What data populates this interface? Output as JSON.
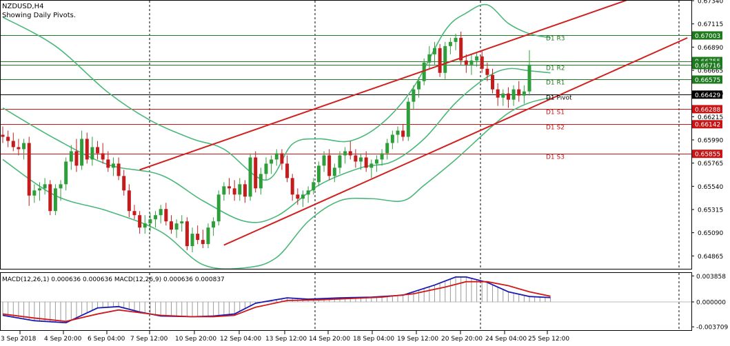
{
  "symbol_title": "NZDUSD,H4",
  "subtitle": "Showing Daily Pivots.",
  "macd_label": "MACD(12,26,1) 0.000636 0.000636 MACD(12,26,9) 0.000636 0.000837",
  "colors": {
    "bull": "#2e9e3a",
    "bear": "#c21c1c",
    "bollinger": "#4ab87a",
    "trend": "#d02020",
    "pivot_res": "#1f7a1f",
    "pivot_sup": "#c81414",
    "pivot_main": "#000000",
    "macd_fast": "#1a1ab0",
    "macd_signal": "#d01818",
    "hist": "#9a9a9a"
  },
  "chart_data": {
    "type": "candlestick",
    "symbol": "NZDUSD",
    "timeframe": "H4",
    "y_ticks": [
      "0.67340",
      "0.67115",
      "0.66890",
      "0.66665",
      "0.66440",
      "0.66215",
      "0.65990",
      "0.65765",
      "0.65540",
      "0.65315",
      "0.65090",
      "0.64865"
    ],
    "ylim": [
      0.6474,
      0.6734
    ],
    "x_tick_labels": [
      "3 Sep 2018",
      "4 Sep 20:00",
      "6 Sep 04:00",
      "7 Sep 12:00",
      "10 Sep 20:00",
      "12 Sep 04:00",
      "13 Sep 12:00",
      "14 Sep 20:00",
      "18 Sep 04:00",
      "19 Sep 12:00",
      "20 Sep 20:00",
      "24 Sep 04:00",
      "25 Sep 12:00"
    ],
    "candles": [
      [
        0.6604,
        0.6612,
        0.6596,
        0.6602
      ],
      [
        0.6602,
        0.6608,
        0.6592,
        0.6598
      ],
      [
        0.6598,
        0.6606,
        0.6588,
        0.6592
      ],
      [
        0.6592,
        0.66,
        0.6584,
        0.659
      ],
      [
        0.659,
        0.66,
        0.658,
        0.6596
      ],
      [
        0.6596,
        0.6602,
        0.6535,
        0.6545
      ],
      [
        0.6545,
        0.6556,
        0.6538,
        0.655
      ],
      [
        0.655,
        0.6558,
        0.654,
        0.6552
      ],
      [
        0.6552,
        0.6562,
        0.6546,
        0.6556
      ],
      [
        0.6556,
        0.656,
        0.6526,
        0.653
      ],
      [
        0.653,
        0.6556,
        0.6526,
        0.6552
      ],
      [
        0.6552,
        0.656,
        0.654,
        0.6556
      ],
      [
        0.6556,
        0.6582,
        0.655,
        0.6578
      ],
      [
        0.6578,
        0.6594,
        0.657,
        0.6588
      ],
      [
        0.6588,
        0.66,
        0.6568,
        0.6574
      ],
      [
        0.6574,
        0.6608,
        0.657,
        0.66
      ],
      [
        0.66,
        0.6606,
        0.6576,
        0.658
      ],
      [
        0.658,
        0.6602,
        0.6574,
        0.6592
      ],
      [
        0.6592,
        0.6598,
        0.658,
        0.6586
      ],
      [
        0.6586,
        0.6596,
        0.6576,
        0.658
      ],
      [
        0.658,
        0.6588,
        0.6568,
        0.6572
      ],
      [
        0.6572,
        0.6582,
        0.6564,
        0.6576
      ],
      [
        0.6576,
        0.6582,
        0.656,
        0.6564
      ],
      [
        0.6564,
        0.657,
        0.6545,
        0.655
      ],
      [
        0.655,
        0.6556,
        0.6524,
        0.653
      ],
      [
        0.653,
        0.6536,
        0.6522,
        0.6526
      ],
      [
        0.6526,
        0.653,
        0.6508,
        0.6514
      ],
      [
        0.6514,
        0.6526,
        0.6508,
        0.6518
      ],
      [
        0.6518,
        0.6528,
        0.651,
        0.6522
      ],
      [
        0.6522,
        0.653,
        0.6514,
        0.6526
      ],
      [
        0.6526,
        0.6536,
        0.6518,
        0.6532
      ],
      [
        0.6532,
        0.6538,
        0.6516,
        0.652
      ],
      [
        0.652,
        0.6526,
        0.6508,
        0.6512
      ],
      [
        0.6512,
        0.6522,
        0.6504,
        0.6518
      ],
      [
        0.6518,
        0.6526,
        0.651,
        0.652
      ],
      [
        0.652,
        0.6524,
        0.6492,
        0.6496
      ],
      [
        0.6496,
        0.6514,
        0.649,
        0.6508
      ],
      [
        0.6508,
        0.6516,
        0.6498,
        0.6502
      ],
      [
        0.6502,
        0.6512,
        0.6494,
        0.6498
      ],
      [
        0.6498,
        0.6518,
        0.6494,
        0.6514
      ],
      [
        0.6514,
        0.6524,
        0.6506,
        0.652
      ],
      [
        0.652,
        0.655,
        0.6516,
        0.6546
      ],
      [
        0.6546,
        0.6558,
        0.654,
        0.6554
      ],
      [
        0.6554,
        0.6562,
        0.6546,
        0.6552
      ],
      [
        0.6552,
        0.656,
        0.654,
        0.6546
      ],
      [
        0.6546,
        0.6562,
        0.654,
        0.6556
      ],
      [
        0.6556,
        0.656,
        0.6538,
        0.6544
      ],
      [
        0.6544,
        0.6586,
        0.654,
        0.6582
      ],
      [
        0.6582,
        0.6588,
        0.6548,
        0.6552
      ],
      [
        0.6552,
        0.6572,
        0.6546,
        0.6566
      ],
      [
        0.6566,
        0.6582,
        0.656,
        0.6576
      ],
      [
        0.6576,
        0.6584,
        0.6566,
        0.658
      ],
      [
        0.658,
        0.659,
        0.6574,
        0.6586
      ],
      [
        0.6586,
        0.659,
        0.657,
        0.6576
      ],
      [
        0.6576,
        0.6584,
        0.6558,
        0.6562
      ],
      [
        0.6562,
        0.6566,
        0.654,
        0.6546
      ],
      [
        0.6546,
        0.6552,
        0.6536,
        0.6542
      ],
      [
        0.6542,
        0.655,
        0.6534,
        0.6546
      ],
      [
        0.6546,
        0.6554,
        0.6538,
        0.655
      ],
      [
        0.655,
        0.6562,
        0.6546,
        0.6558
      ],
      [
        0.6558,
        0.6578,
        0.6554,
        0.6574
      ],
      [
        0.6574,
        0.6588,
        0.6568,
        0.6584
      ],
      [
        0.6584,
        0.659,
        0.656,
        0.6564
      ],
      [
        0.6564,
        0.6576,
        0.6558,
        0.6572
      ],
      [
        0.6572,
        0.6588,
        0.6566,
        0.6584
      ],
      [
        0.6584,
        0.6592,
        0.6576,
        0.6588
      ],
      [
        0.6588,
        0.6598,
        0.658,
        0.6584
      ],
      [
        0.6584,
        0.659,
        0.6572,
        0.6578
      ],
      [
        0.6578,
        0.6586,
        0.657,
        0.6582
      ],
      [
        0.6582,
        0.6588,
        0.6568,
        0.6572
      ],
      [
        0.6572,
        0.658,
        0.6562,
        0.6576
      ],
      [
        0.6576,
        0.6584,
        0.6568,
        0.658
      ],
      [
        0.658,
        0.659,
        0.6574,
        0.6586
      ],
      [
        0.6586,
        0.66,
        0.658,
        0.6596
      ],
      [
        0.6596,
        0.6608,
        0.659,
        0.6604
      ],
      [
        0.6604,
        0.6612,
        0.6596,
        0.6608
      ],
      [
        0.6608,
        0.6614,
        0.6598,
        0.6602
      ],
      [
        0.6602,
        0.664,
        0.6598,
        0.6636
      ],
      [
        0.6636,
        0.6652,
        0.6628,
        0.6648
      ],
      [
        0.6648,
        0.666,
        0.664,
        0.6656
      ],
      [
        0.6656,
        0.6678,
        0.6652,
        0.6674
      ],
      [
        0.6674,
        0.669,
        0.6668,
        0.6682
      ],
      [
        0.6682,
        0.6694,
        0.6672,
        0.6688
      ],
      [
        0.6688,
        0.6692,
        0.666,
        0.6664
      ],
      [
        0.6664,
        0.6694,
        0.6658,
        0.669
      ],
      [
        0.669,
        0.6698,
        0.6682,
        0.6694
      ],
      [
        0.6694,
        0.6702,
        0.6686,
        0.6698
      ],
      [
        0.6698,
        0.6704,
        0.6672,
        0.6676
      ],
      [
        0.6676,
        0.6682,
        0.6664,
        0.6672
      ],
      [
        0.6672,
        0.6682,
        0.6662,
        0.6676
      ],
      [
        0.6676,
        0.6684,
        0.667,
        0.668
      ],
      [
        0.668,
        0.6686,
        0.6664,
        0.6668
      ],
      [
        0.6668,
        0.6674,
        0.6656,
        0.6662
      ],
      [
        0.6662,
        0.6668,
        0.6644,
        0.6648
      ],
      [
        0.6648,
        0.6654,
        0.6632,
        0.664
      ],
      [
        0.664,
        0.6648,
        0.6632,
        0.6644
      ],
      [
        0.6644,
        0.665,
        0.663,
        0.6638
      ],
      [
        0.6638,
        0.6652,
        0.6632,
        0.6648
      ],
      [
        0.6648,
        0.6656,
        0.6636,
        0.6642
      ],
      [
        0.6642,
        0.6652,
        0.6634,
        0.6646
      ],
      [
        0.6646,
        0.6686,
        0.6642,
        0.6672
      ]
    ],
    "bollinger": {
      "upper": [
        [
          0,
          0.6718
        ],
        [
          10,
          0.669
        ],
        [
          20,
          0.6645
        ],
        [
          28,
          0.6618
        ],
        [
          36,
          0.66
        ],
        [
          42,
          0.659
        ],
        [
          50,
          0.656
        ],
        [
          55,
          0.6595
        ],
        [
          60,
          0.66
        ],
        [
          66,
          0.6598
        ],
        [
          72,
          0.6615
        ],
        [
          78,
          0.665
        ],
        [
          84,
          0.6705
        ],
        [
          88,
          0.6722
        ],
        [
          92,
          0.673
        ],
        [
          96,
          0.6712
        ],
        [
          100,
          0.6702
        ],
        [
          104,
          0.6698
        ]
      ],
      "middle": [
        [
          0,
          0.663
        ],
        [
          10,
          0.66
        ],
        [
          20,
          0.6575
        ],
        [
          30,
          0.6565
        ],
        [
          38,
          0.654
        ],
        [
          46,
          0.652
        ],
        [
          52,
          0.6525
        ],
        [
          60,
          0.6555
        ],
        [
          68,
          0.6572
        ],
        [
          74,
          0.6578
        ],
        [
          80,
          0.66
        ],
        [
          86,
          0.6635
        ],
        [
          92,
          0.666
        ],
        [
          96,
          0.6668
        ],
        [
          100,
          0.6666
        ],
        [
          104,
          0.6664
        ]
      ],
      "lower": [
        [
          0,
          0.658
        ],
        [
          10,
          0.6545
        ],
        [
          20,
          0.653
        ],
        [
          30,
          0.651
        ],
        [
          38,
          0.6478
        ],
        [
          46,
          0.6475
        ],
        [
          52,
          0.6485
        ],
        [
          58,
          0.652
        ],
        [
          64,
          0.654
        ],
        [
          70,
          0.6542
        ],
        [
          76,
          0.654
        ],
        [
          80,
          0.6555
        ],
        [
          86,
          0.658
        ],
        [
          92,
          0.6608
        ],
        [
          96,
          0.6625
        ],
        [
          100,
          0.6635
        ],
        [
          104,
          0.664
        ]
      ]
    },
    "trend_lines": [
      {
        "from": [
          26,
          0.657
        ],
        "to": [
          130,
          0.6755
        ]
      },
      {
        "from": [
          42,
          0.6497
        ],
        "to": [
          130,
          0.6698
        ]
      }
    ],
    "pivot_levels": [
      {
        "label": "D1 R3",
        "value": 0.67003,
        "kind": "res"
      },
      {
        "label": "D1 R2",
        "value": 0.66716,
        "kind": "res"
      },
      {
        "label": "D1 R1",
        "value": 0.66575,
        "kind": "res"
      },
      {
        "label": "D1 Pivot",
        "value": 0.66429,
        "kind": "pivot"
      },
      {
        "label": "D1 S1",
        "value": 0.66288,
        "kind": "sup"
      },
      {
        "label": "D1 S2",
        "value": 0.66142,
        "kind": "sup"
      },
      {
        "label": "D1 S3",
        "value": 0.65855,
        "kind": "sup"
      }
    ],
    "price_tags": [
      {
        "value": 0.67003,
        "text": "0.67003",
        "color": "#1f7a1f"
      },
      {
        "value": 0.66755,
        "text": "0.66755",
        "color": "#1f7a1f"
      },
      {
        "value": 0.66716,
        "text": "0.66716",
        "color": "#1f7a1f"
      },
      {
        "value": 0.66575,
        "text": "0.66575",
        "color": "#1f7a1f"
      },
      {
        "value": 0.66429,
        "text": "0.66429",
        "color": "#000000"
      },
      {
        "value": 0.66288,
        "text": "0.66288",
        "color": "#c81414"
      },
      {
        "value": 0.66142,
        "text": "0.66142",
        "color": "#c81414"
      },
      {
        "value": 0.65855,
        "text": "0.65855",
        "color": "#c81414"
      }
    ],
    "extra_lines": [
      0.66755
    ],
    "macd": {
      "ylim": [
        -0.0042,
        0.0043
      ],
      "y_ticks": [
        "0.003858",
        "0.000000",
        "-0.003709"
      ],
      "y_tick_values": [
        0.003858,
        0.0,
        -0.003709
      ],
      "fast": [
        [
          0,
          -0.002
        ],
        [
          6,
          -0.0028
        ],
        [
          12,
          -0.0031
        ],
        [
          18,
          -0.0009
        ],
        [
          22,
          -0.0007
        ],
        [
          26,
          -0.0015
        ],
        [
          30,
          -0.0021
        ],
        [
          36,
          -0.0022
        ],
        [
          40,
          -0.0021
        ],
        [
          44,
          -0.0018
        ],
        [
          48,
          -0.0002
        ],
        [
          54,
          0.0006
        ],
        [
          58,
          0.0004
        ],
        [
          64,
          0.0006
        ],
        [
          70,
          0.0007
        ],
        [
          76,
          0.001
        ],
        [
          82,
          0.0025
        ],
        [
          86,
          0.0037
        ],
        [
          88,
          0.0037
        ],
        [
          92,
          0.0029
        ],
        [
          96,
          0.0015
        ],
        [
          100,
          0.0008
        ],
        [
          104,
          0.000636
        ]
      ],
      "signal": [
        [
          0,
          -0.0018
        ],
        [
          6,
          -0.0024
        ],
        [
          12,
          -0.0029
        ],
        [
          18,
          -0.0018
        ],
        [
          22,
          -0.0012
        ],
        [
          26,
          -0.0016
        ],
        [
          30,
          -0.002
        ],
        [
          36,
          -0.0022
        ],
        [
          40,
          -0.0022
        ],
        [
          44,
          -0.002
        ],
        [
          48,
          -0.0008
        ],
        [
          54,
          0.0002
        ],
        [
          60,
          0.0003
        ],
        [
          66,
          0.0005
        ],
        [
          72,
          0.0007
        ],
        [
          78,
          0.0012
        ],
        [
          84,
          0.0022
        ],
        [
          88,
          0.003
        ],
        [
          92,
          0.003
        ],
        [
          96,
          0.0024
        ],
        [
          100,
          0.0015
        ],
        [
          104,
          0.000837
        ]
      ]
    }
  }
}
